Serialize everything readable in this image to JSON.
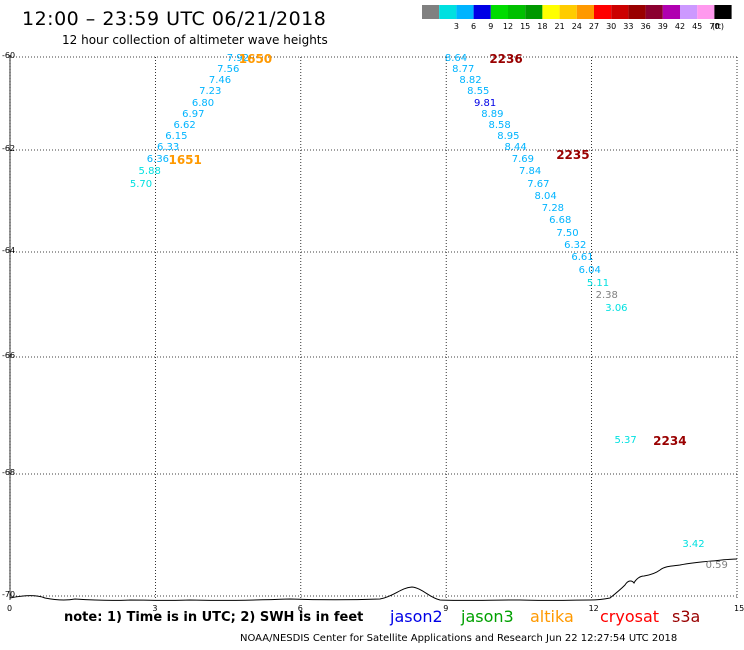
{
  "title": "12:00 – 23:59 UTC 06/21/2018",
  "subtitle": "12 hour collection of altimeter wave heights",
  "legend": {
    "unit": "(ft)",
    "items": [
      {
        "color": "#808080",
        "label": ""
      },
      {
        "color": "#00e0e0",
        "label": "3"
      },
      {
        "color": "#00b4ff",
        "label": "6"
      },
      {
        "color": "#0000e6",
        "label": "9"
      },
      {
        "color": "#00dc00",
        "label": "12"
      },
      {
        "color": "#00c000",
        "label": "15"
      },
      {
        "color": "#009800",
        "label": "18"
      },
      {
        "color": "#ffff00",
        "label": "21"
      },
      {
        "color": "#ffcc00",
        "label": "24"
      },
      {
        "color": "#ff9900",
        "label": "27"
      },
      {
        "color": "#ff0000",
        "label": "30"
      },
      {
        "color": "#cc0000",
        "label": "33"
      },
      {
        "color": "#990000",
        "label": "36"
      },
      {
        "color": "#8b0030",
        "label": "39"
      },
      {
        "color": "#b000b0",
        "label": "42"
      },
      {
        "color": "#cc99ff",
        "label": "45"
      },
      {
        "color": "#ff99ee",
        "label": "70"
      },
      {
        "color": "#000000",
        "label": ""
      }
    ]
  },
  "lat_ticks": [
    "-60",
    "-62",
    "-64",
    "-66",
    "-68",
    "-70"
  ],
  "lon_ticks": [
    "0",
    "3",
    "6",
    "9",
    "12",
    "15"
  ],
  "points": [
    {
      "lon": 4.72,
      "lat": -60.04,
      "v": "7.92",
      "c": "#00b4ff"
    },
    {
      "lon": 4.52,
      "lat": -60.28,
      "v": "7.56",
      "c": "#00b4ff"
    },
    {
      "lon": 4.35,
      "lat": -60.52,
      "v": "7.46",
      "c": "#00b4ff"
    },
    {
      "lon": 4.15,
      "lat": -60.76,
      "v": "7.23",
      "c": "#00b4ff"
    },
    {
      "lon": 4.0,
      "lat": -61.0,
      "v": "6.80",
      "c": "#00b4ff"
    },
    {
      "lon": 3.8,
      "lat": -61.24,
      "v": "6.97",
      "c": "#00b4ff"
    },
    {
      "lon": 3.62,
      "lat": -61.48,
      "v": "6.62",
      "c": "#00b4ff"
    },
    {
      "lon": 3.45,
      "lat": -61.72,
      "v": "6.15",
      "c": "#00b4ff"
    },
    {
      "lon": 3.28,
      "lat": -61.96,
      "v": "6.33",
      "c": "#00b4ff"
    },
    {
      "lon": 3.07,
      "lat": -62.2,
      "v": "6.36",
      "c": "#00b4ff"
    },
    {
      "lon": 2.9,
      "lat": -62.44,
      "v": "5.88",
      "c": "#00e0e0"
    },
    {
      "lon": 2.72,
      "lat": -62.68,
      "v": "5.70",
      "c": "#00e0e0"
    },
    {
      "lon": 9.22,
      "lat": -60.04,
      "v": "8.64",
      "c": "#00b4ff"
    },
    {
      "lon": 9.37,
      "lat": -60.28,
      "v": "8.77",
      "c": "#00b4ff"
    },
    {
      "lon": 9.52,
      "lat": -60.52,
      "v": "8.82",
      "c": "#00b4ff"
    },
    {
      "lon": 9.68,
      "lat": -60.76,
      "v": "8.55",
      "c": "#00b4ff"
    },
    {
      "lon": 9.82,
      "lat": -61.0,
      "v": "9.81",
      "c": "#0000e6"
    },
    {
      "lon": 9.97,
      "lat": -61.24,
      "v": "8.89",
      "c": "#00b4ff"
    },
    {
      "lon": 10.12,
      "lat": -61.48,
      "v": "8.58",
      "c": "#00b4ff"
    },
    {
      "lon": 10.3,
      "lat": -61.72,
      "v": "8.95",
      "c": "#00b4ff"
    },
    {
      "lon": 10.45,
      "lat": -61.96,
      "v": "8.44",
      "c": "#00b4ff"
    },
    {
      "lon": 10.6,
      "lat": -62.2,
      "v": "7.69",
      "c": "#00b4ff"
    },
    {
      "lon": 10.75,
      "lat": -62.44,
      "v": "7.84",
      "c": "#00b4ff"
    },
    {
      "lon": 10.92,
      "lat": -62.68,
      "v": "7.67",
      "c": "#00b4ff"
    },
    {
      "lon": 11.07,
      "lat": -62.92,
      "v": "8.04",
      "c": "#00b4ff"
    },
    {
      "lon": 11.22,
      "lat": -63.16,
      "v": "7.28",
      "c": "#00b4ff"
    },
    {
      "lon": 11.37,
      "lat": -63.4,
      "v": "6.68",
      "c": "#00b4ff"
    },
    {
      "lon": 11.52,
      "lat": -63.64,
      "v": "7.50",
      "c": "#00b4ff"
    },
    {
      "lon": 11.68,
      "lat": -63.88,
      "v": "6.32",
      "c": "#00b4ff"
    },
    {
      "lon": 11.83,
      "lat": -64.12,
      "v": "6.61",
      "c": "#00b4ff"
    },
    {
      "lon": 11.98,
      "lat": -64.36,
      "v": "6.04",
      "c": "#00b4ff"
    },
    {
      "lon": 12.15,
      "lat": -64.6,
      "v": "5.11",
      "c": "#00e0e0"
    },
    {
      "lon": 12.33,
      "lat": -64.84,
      "v": "2.38",
      "c": "#808080"
    },
    {
      "lon": 12.53,
      "lat": -65.08,
      "v": "3.06",
      "c": "#00e0e0"
    },
    {
      "lon": 12.72,
      "lat": -67.43,
      "v": "5.37",
      "c": "#00e0e0"
    },
    {
      "lon": 14.12,
      "lat": -69.16,
      "v": "3.42",
      "c": "#00e0e0"
    },
    {
      "lon": 14.6,
      "lat": -69.5,
      "v": "0.59",
      "c": "#808080"
    }
  ],
  "time_labels": [
    {
      "lon": 5.05,
      "lat": -60.04,
      "t": "1650",
      "c": "#ff9900"
    },
    {
      "lon": 3.6,
      "lat": -62.2,
      "t": "1651",
      "c": "#ff9900"
    },
    {
      "lon": 10.22,
      "lat": -60.04,
      "t": "2236",
      "c": "#990000"
    },
    {
      "lon": 11.6,
      "lat": -62.1,
      "t": "2235",
      "c": "#990000"
    },
    {
      "lon": 13.6,
      "lat": -67.43,
      "t": "2234",
      "c": "#990000"
    }
  ],
  "footer": {
    "note": "note: 1) Time is in UTC; 2) SWH is in feet",
    "satellites": [
      {
        "name": "jason2",
        "color": "#0000e6"
      },
      {
        "name": "jason3",
        "color": "#00a000"
      },
      {
        "name": "altika",
        "color": "#ff9900"
      },
      {
        "name": "cryosat",
        "color": "#ff0000"
      },
      {
        "name": "s3a",
        "color": "#990000"
      }
    ],
    "credit": "NOAA/NESDIS Center for Satellite Applications and Research     Jun 22 12:27:54 UTC 2018"
  }
}
